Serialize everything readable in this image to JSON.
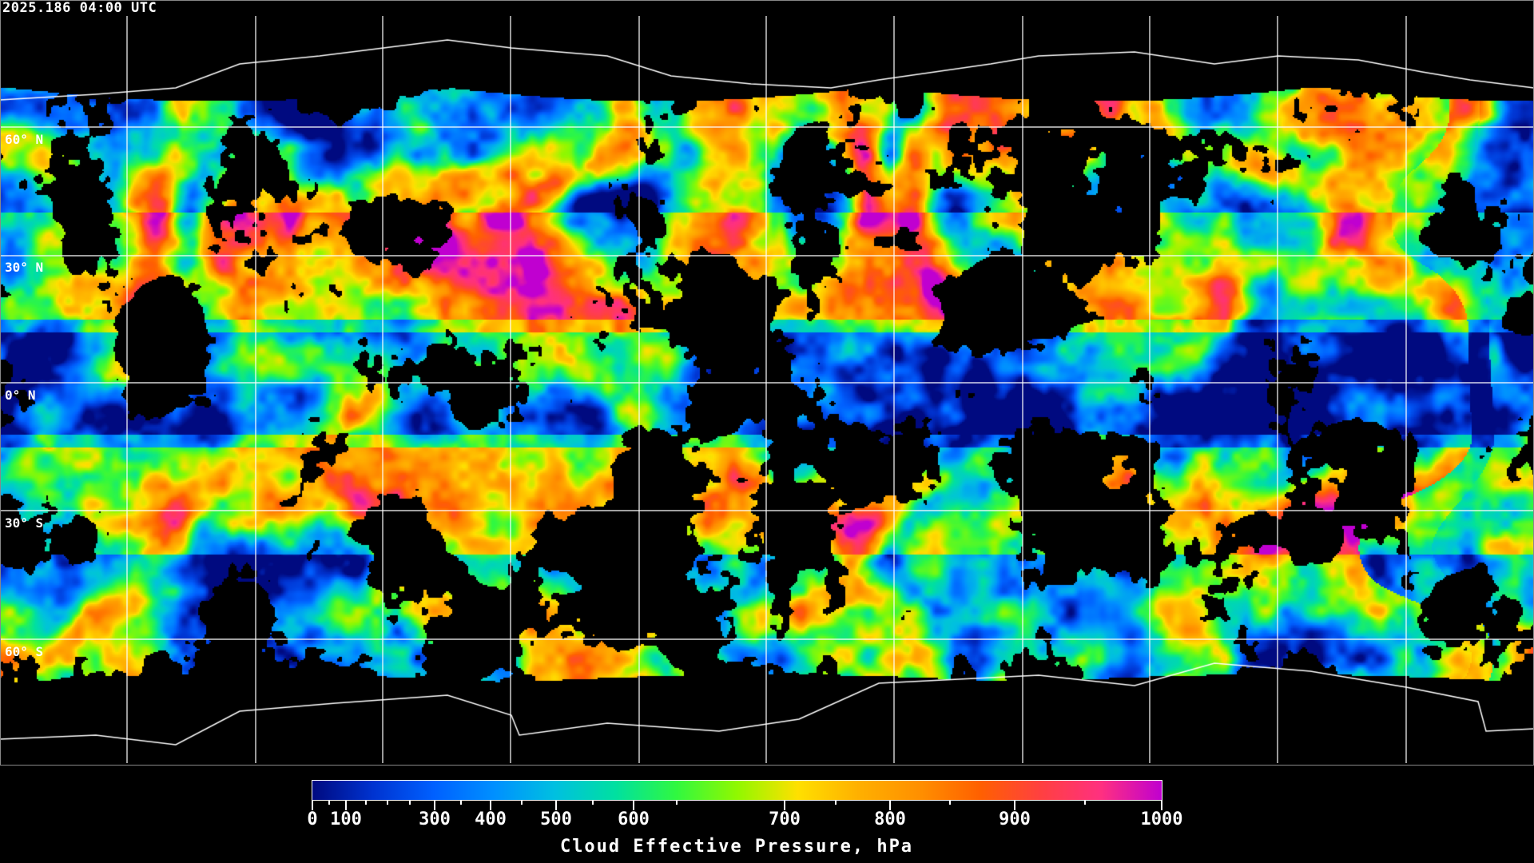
{
  "title": "2025.186 04:00 UTC",
  "latitude_labels": [
    "60° N",
    "30° N",
    "0° N",
    "30° S",
    "60° S"
  ],
  "colorbar": {
    "title": "Cloud Effective Pressure, hPa",
    "min": 0,
    "max": 1000,
    "major_ticks": [
      0,
      100,
      300,
      400,
      500,
      600,
      700,
      800,
      900,
      1000
    ],
    "minor_ticks": [
      50,
      150,
      200,
      250,
      350,
      450,
      550,
      650,
      750,
      850,
      950
    ],
    "labels": [
      "0",
      "100",
      "300",
      "400",
      "500",
      "600",
      "700",
      "800",
      "900",
      "1000"
    ],
    "colormap": [
      "#000a80",
      "#0033d0",
      "#0060ff",
      "#0090ff",
      "#00c0e0",
      "#00e0a0",
      "#30f840",
      "#90f800",
      "#ffe000",
      "#ffb000",
      "#ff9000",
      "#ff6000",
      "#ff4040",
      "#ff3080",
      "#c000d0"
    ]
  },
  "colors": {
    "background": "#000000",
    "gridlines": "#ffffff",
    "coastlines": "#ffffff",
    "no_data": "#000000"
  }
}
